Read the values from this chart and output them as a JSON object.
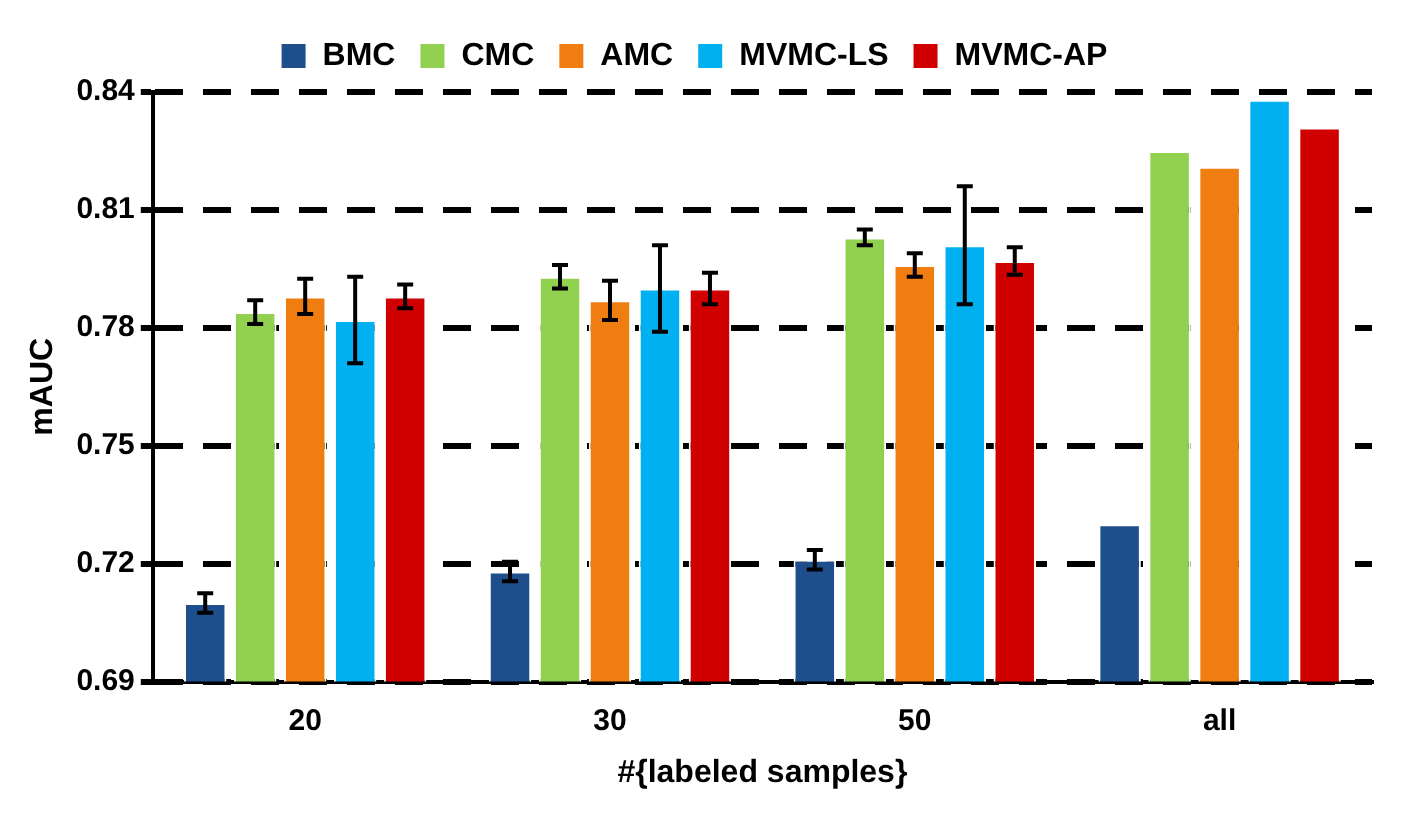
{
  "chart_data": {
    "type": "bar",
    "xlabel": "#{labeled samples}",
    "ylabel": "mAUC",
    "categories": [
      "20",
      "30",
      "50",
      "all"
    ],
    "series": [
      {
        "name": "BMC",
        "color": "#1f4e8c",
        "values": [
          0.71,
          0.718,
          0.721,
          0.73
        ],
        "errors": [
          0.0025,
          0.0025,
          0.0025,
          null
        ]
      },
      {
        "name": "CMC",
        "color": "#92d050",
        "values": [
          0.784,
          0.793,
          0.803,
          0.825
        ],
        "errors": [
          0.003,
          0.003,
          0.002,
          null
        ]
      },
      {
        "name": "AMC",
        "color": "#f07d10",
        "values": [
          0.788,
          0.787,
          0.796,
          0.821
        ],
        "errors": [
          0.0045,
          0.005,
          0.003,
          null
        ]
      },
      {
        "name": "MVMC-LS",
        "color": "#00b0f0",
        "values": [
          0.782,
          0.79,
          0.801,
          0.838
        ],
        "errors": [
          0.011,
          0.011,
          0.015,
          null
        ]
      },
      {
        "name": "MVMC-AP",
        "color": "#d00000",
        "values": [
          0.788,
          0.79,
          0.797,
          0.831
        ],
        "errors": [
          0.003,
          0.004,
          0.0035,
          null
        ]
      }
    ],
    "ylim": [
      0.69,
      0.84
    ],
    "yticks": [
      0.69,
      0.72,
      0.75,
      0.78,
      0.81,
      0.84
    ],
    "grid": "y",
    "legend": "top"
  }
}
